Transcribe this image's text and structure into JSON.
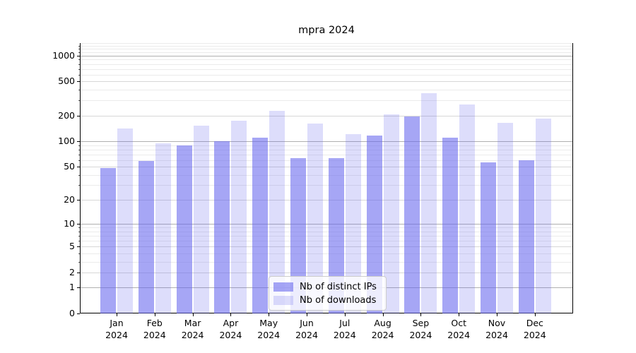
{
  "chart_data": {
    "type": "bar",
    "title": "mpra 2024",
    "categories": [
      "Jan 2024",
      "Feb 2024",
      "Mar 2024",
      "Apr 2024",
      "May 2024",
      "Jun 2024",
      "Jul 2024",
      "Aug 2024",
      "Sep 2024",
      "Oct 2024",
      "Nov 2024",
      "Dec 2024"
    ],
    "series": [
      {
        "name": "Nb of distinct IPs",
        "color": "#6666ee",
        "alpha": 0.58,
        "values": [
          48,
          58,
          89,
          101,
          110,
          63,
          63,
          116,
          196,
          111,
          56,
          60
        ]
      },
      {
        "name": "Nb of downloads",
        "color": "#6666ee",
        "alpha": 0.22,
        "values": [
          142,
          94,
          153,
          175,
          225,
          160,
          120,
          207,
          368,
          269,
          165,
          184
        ]
      }
    ],
    "yscale": "log1p",
    "ylim": [
      0,
      1400
    ],
    "yticks": [
      0,
      1,
      2,
      5,
      10,
      20,
      50,
      100,
      200,
      500,
      1000
    ],
    "xlabel": "",
    "ylabel": "",
    "grid": true,
    "legend_position": "lower center",
    "grid_colors": {
      "decade": "#b0b0b0",
      "labeled": "#d7d7d7",
      "minor": "#ebebeb"
    }
  }
}
